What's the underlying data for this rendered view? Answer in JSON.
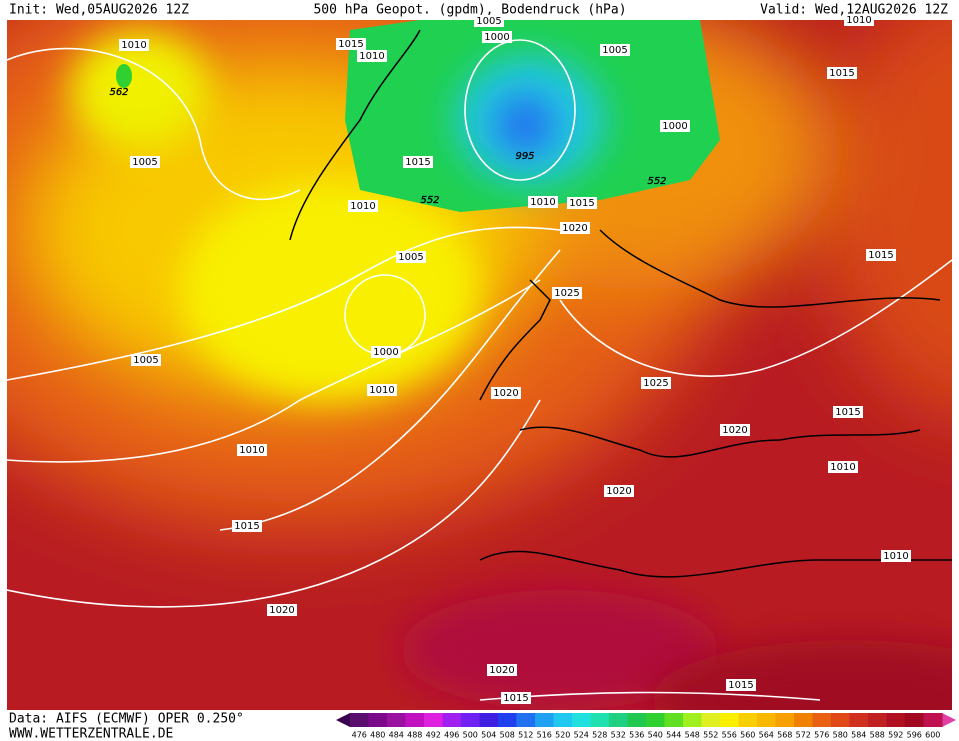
{
  "header": {
    "init": "Init: Wed,05AUG2026 12Z",
    "title": "500 hPa Geopot. (gpdm), Bodendruck (hPa)",
    "valid": "Valid: Wed,12AUG2026 12Z"
  },
  "isobar_labels": [
    "1010",
    "1015",
    "1010",
    "1005",
    "1000",
    "1005",
    "1015",
    "562",
    "1000",
    "1005",
    "995",
    "1015",
    "552",
    "1010",
    "552",
    "1010",
    "1015",
    "1020",
    "1005",
    "1015",
    "1025",
    "1000",
    "1005",
    "1025",
    "1010",
    "1020",
    "1015",
    "1020",
    "1010",
    "1010",
    "1020",
    "1015",
    "1010",
    "1020",
    "1020",
    "1015",
    "1015",
    "1010"
  ],
  "legend": {
    "levels": [
      476,
      480,
      484,
      488,
      492,
      496,
      500,
      504,
      508,
      512,
      516,
      520,
      524,
      528,
      532,
      536,
      540,
      544,
      548,
      552,
      556,
      560,
      564,
      568,
      572,
      576,
      580,
      584,
      588,
      592,
      596,
      600
    ],
    "colors": [
      "#5a0f6e",
      "#7a0a8a",
      "#9a10a0",
      "#c010c0",
      "#e020e0",
      "#a020f0",
      "#7020f0",
      "#4020e0",
      "#2040f0",
      "#2070f0",
      "#20a0f0",
      "#20c8f0",
      "#20e0e0",
      "#20e0b0",
      "#20d080",
      "#20c850",
      "#30d030",
      "#60e020",
      "#a0f020",
      "#e0f020",
      "#f8f000",
      "#f8d000",
      "#f8b800",
      "#f8a000",
      "#f08000",
      "#e86010",
      "#e04818",
      "#d03020",
      "#c02020",
      "#b01020",
      "#a00820",
      "#c01050"
    ]
  },
  "footer": {
    "source": "Data: AIFS (ECMWF) OPER 0.250°",
    "site": "WWW.WETTERZENTRALE.DE"
  }
}
